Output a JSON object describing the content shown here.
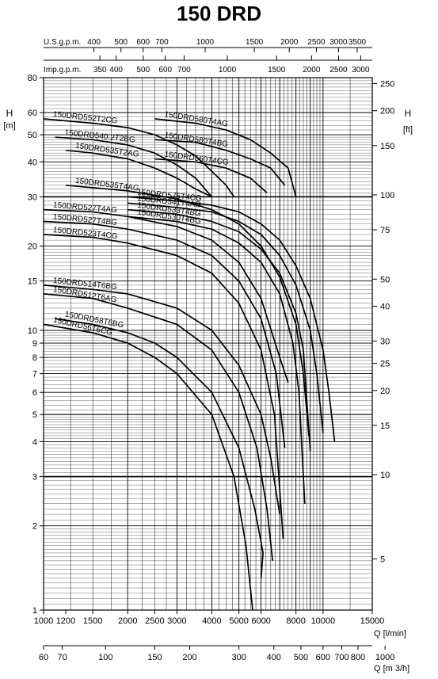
{
  "title": "150 DRD",
  "chart_data": {
    "type": "line",
    "title": "150 DRD",
    "x_scale": "log",
    "y_scale": "log",
    "xlabel": "Q [l/min]",
    "xlabel_m3h": "Q [m 3/h]",
    "xlabel_usgpm": "U.S.g.p.m.",
    "xlabel_impgpm": "Imp.g.p.m.",
    "ylabel": "H [m]",
    "ylabel_ft": "H [ft]",
    "xlim": [
      1000,
      15000
    ],
    "ylim": [
      1,
      80
    ],
    "grid": true,
    "x_ticks_lpm": [
      "1000",
      "1200",
      "1500",
      "2000",
      "2500",
      "3000",
      "4000",
      "5000",
      "6000",
      "8000",
      "10000",
      "15000"
    ],
    "x_ticks_m3h": [
      "60",
      "70",
      "100",
      "150",
      "200",
      "300",
      "400",
      "500",
      "600",
      "700",
      "800",
      "1000"
    ],
    "x_ticks_usgpm": [
      "400",
      "500",
      "600",
      "700",
      "1000",
      "1500",
      "2000",
      "2500",
      "3000",
      "3500"
    ],
    "x_ticks_impgpm": [
      "350",
      "400",
      "500",
      "600",
      "700",
      "1000",
      "1500",
      "2000",
      "2500",
      "3000"
    ],
    "y_ticks_m": [
      "1",
      "2",
      "3",
      "4",
      "5",
      "6",
      "7",
      "8",
      "9",
      "10",
      "15",
      "20",
      "30",
      "40",
      "50",
      "60",
      "80"
    ],
    "y_ticks_ft": [
      "5",
      "10",
      "15",
      "20",
      "25",
      "30",
      "40",
      "50",
      "75",
      "100",
      "150",
      "200",
      "250"
    ],
    "series": [
      {
        "name": "150DRD580T4AG",
        "x": [
          2500,
          3500,
          4500,
          5500,
          6500,
          7500,
          8000
        ],
        "y": [
          57,
          55,
          52,
          48,
          43,
          38,
          30
        ]
      },
      {
        "name": "150DRD580T4BG",
        "x": [
          2500,
          3500,
          4500,
          5500,
          6500,
          7300
        ],
        "y": [
          48,
          47,
          44,
          41,
          38,
          33
        ]
      },
      {
        "name": "150DRD560T4CG",
        "x": [
          2500,
          3500,
          4500,
          5500,
          6300
        ],
        "y": [
          41,
          40,
          38,
          35,
          31
        ]
      },
      {
        "name": "150DRD552T2CG",
        "x": [
          1000,
          1500,
          2000,
          2500,
          3000,
          3500,
          4000,
          4500,
          4800
        ],
        "y": [
          57,
          55,
          53,
          50,
          46,
          42,
          37,
          33,
          30
        ]
      },
      {
        "name": "150DRD540.2T2BG",
        "x": [
          1100,
          1500,
          2000,
          2500,
          3000,
          3500,
          4000
        ],
        "y": [
          49,
          48,
          46,
          43,
          39,
          35,
          30
        ]
      },
      {
        "name": "150DRD535T2AG",
        "x": [
          1200,
          1500,
          2000,
          2500,
          3000,
          3500,
          4000
        ],
        "y": [
          44,
          43,
          41,
          38,
          35,
          32,
          30
        ]
      },
      {
        "name": "150DRD575T4CG",
        "x": [
          2000,
          3000,
          4000,
          5000,
          6000,
          7000,
          8000,
          9000,
          10000,
          10500,
          11000
        ],
        "y": [
          30,
          29,
          28,
          26.5,
          24,
          21,
          17,
          13,
          8.5,
          6,
          4
        ]
      },
      {
        "name": "150DRD541T4AG",
        "x": [
          2000,
          3000,
          4000,
          5000,
          6000,
          7000,
          8000,
          9000,
          9500,
          10000
        ],
        "y": [
          28.5,
          27.5,
          26.5,
          24.5,
          22,
          18.5,
          14.5,
          10,
          7,
          4.3
        ]
      },
      {
        "name": "150DRD535T4AG",
        "x": [
          1200,
          2000,
          3000,
          4000,
          5000,
          6000,
          7000,
          8000,
          8500,
          8900
        ],
        "y": [
          33,
          31.5,
          29.5,
          27,
          24,
          20,
          15.5,
          10.5,
          7,
          4.2
        ]
      },
      {
        "name": "150DRD533T4BG",
        "x": [
          2000,
          3000,
          4000,
          5000,
          6000,
          7000,
          8000,
          8500,
          9000
        ],
        "y": [
          27,
          26,
          24.5,
          22.5,
          19.5,
          16,
          11.5,
          8.5,
          3.7
        ]
      },
      {
        "name": "150DRD530T4BG",
        "x": [
          2000,
          3000,
          4000,
          5000,
          6000,
          7000,
          7800,
          8200,
          8600
        ],
        "y": [
          25.5,
          24.5,
          23,
          20.5,
          17.5,
          13.5,
          9,
          6,
          2.4
        ]
      },
      {
        "name": "150DRD527T4AG",
        "x": [
          1000,
          1500,
          2000,
          3000,
          4000,
          5000,
          6000,
          7000,
          7500
        ],
        "y": [
          27,
          26.5,
          25.5,
          23.5,
          21,
          17.5,
          13,
          8,
          6.5
        ]
      },
      {
        "name": "150DRD527T4BG",
        "x": [
          1000,
          1500,
          2000,
          3000,
          4000,
          5000,
          6000,
          6800,
          7300
        ],
        "y": [
          24.5,
          24,
          23,
          21,
          18.5,
          15,
          11,
          7,
          3.8
        ]
      },
      {
        "name": "150DRD523T4CG",
        "x": [
          1000,
          1500,
          2000,
          3000,
          4000,
          5000,
          6000,
          6700,
          7200
        ],
        "y": [
          22,
          21.5,
          20.5,
          18.5,
          16,
          12.5,
          8.5,
          5,
          1.8
        ]
      },
      {
        "name": "150DRD514T6BG",
        "x": [
          1000,
          1500,
          2000,
          3000,
          4000,
          5000,
          6000,
          6500,
          7000
        ],
        "y": [
          14.5,
          14,
          13.5,
          12,
          10,
          7.5,
          5,
          3.5,
          2.2
        ]
      },
      {
        "name": "150DRD512T6AG",
        "x": [
          1000,
          1500,
          2000,
          3000,
          4000,
          5000,
          5800,
          6300,
          6600
        ],
        "y": [
          13.5,
          13,
          12,
          10.5,
          8.5,
          6,
          3.8,
          2.3,
          1.5
        ]
      },
      {
        "name": "150DRD58T6BG",
        "x": [
          1100,
          1500,
          2000,
          2500,
          3000,
          4000,
          5000,
          5700,
          6100,
          6000
        ],
        "y": [
          11,
          10.5,
          9.8,
          9,
          8,
          6,
          3.8,
          2.3,
          1.6,
          1.3
        ]
      },
      {
        "name": "150DRD56T6CG",
        "x": [
          1000,
          1500,
          2000,
          2500,
          3000,
          4000,
          4800,
          5300,
          5600
        ],
        "y": [
          10.5,
          9.8,
          9,
          8,
          7,
          5,
          3,
          1.7,
          1
        ]
      }
    ]
  }
}
